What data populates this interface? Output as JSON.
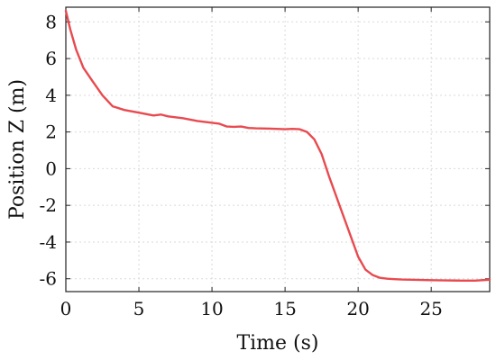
{
  "chart_data": {
    "type": "line",
    "title": "",
    "xlabel": "Time (s)",
    "ylabel": "Position Z (m)",
    "xlim": [
      0,
      29
    ],
    "ylim": [
      -6.7,
      8.8
    ],
    "xticks": [
      0,
      5,
      10,
      15,
      20,
      25
    ],
    "xtick_labels": [
      "0",
      "5",
      "10",
      "15",
      "20",
      "25"
    ],
    "yticks": [
      -6,
      -4,
      -2,
      0,
      2,
      4,
      6,
      8
    ],
    "ytick_labels": [
      "-6",
      "-4",
      "-2",
      "0",
      "2",
      "4",
      "6",
      "8"
    ],
    "grid": true,
    "legend": "none",
    "series": [
      {
        "color": "#e84a4f",
        "x": [
          0,
          0.3,
          0.7,
          1.2,
          1.8,
          2.5,
          3.2,
          4.0,
          5.0,
          6.0,
          6.5,
          7.0,
          8.0,
          9.0,
          10.0,
          10.5,
          11.0,
          11.5,
          12.0,
          12.5,
          13.0,
          14.0,
          15.0,
          15.5,
          16.0,
          16.5,
          17.0,
          17.5,
          18.0,
          18.5,
          19.0,
          19.5,
          20.0,
          20.5,
          21.0,
          21.5,
          22.0,
          22.5,
          23.0,
          24.0,
          25.0,
          26.0,
          27.0,
          28.0,
          29.0
        ],
        "y": [
          8.6,
          7.6,
          6.5,
          5.5,
          4.8,
          4.0,
          3.4,
          3.2,
          3.05,
          2.9,
          2.95,
          2.85,
          2.75,
          2.6,
          2.5,
          2.45,
          2.3,
          2.28,
          2.3,
          2.22,
          2.2,
          2.18,
          2.15,
          2.17,
          2.15,
          2.0,
          1.6,
          0.8,
          -0.4,
          -1.5,
          -2.6,
          -3.7,
          -4.8,
          -5.5,
          -5.8,
          -5.95,
          -6.0,
          -6.02,
          -6.04,
          -6.06,
          -6.08,
          -6.09,
          -6.1,
          -6.1,
          -6.05
        ]
      }
    ]
  }
}
